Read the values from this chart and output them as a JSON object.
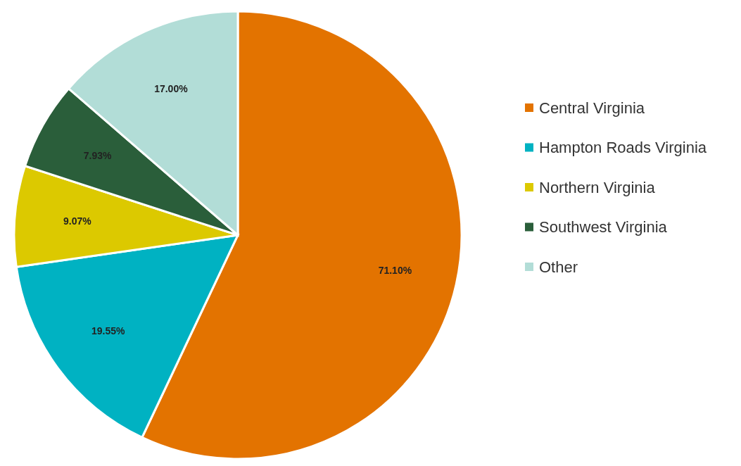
{
  "chart_data": {
    "type": "pie",
    "categories": [
      "Central Virginia",
      "Hampton Roads Virginia",
      "Northern Virginia",
      "Southwest Virginia",
      "Other"
    ],
    "values": [
      71.1,
      19.55,
      9.07,
      7.93,
      17.0
    ],
    "value_labels": [
      "71.10%",
      "19.55%",
      "9.07%",
      "7.93%",
      "17.00%"
    ],
    "colors": [
      "#e37300",
      "#00b2c2",
      "#dcc900",
      "#2a5e3a",
      "#b2ddd7"
    ],
    "legend": "right"
  }
}
